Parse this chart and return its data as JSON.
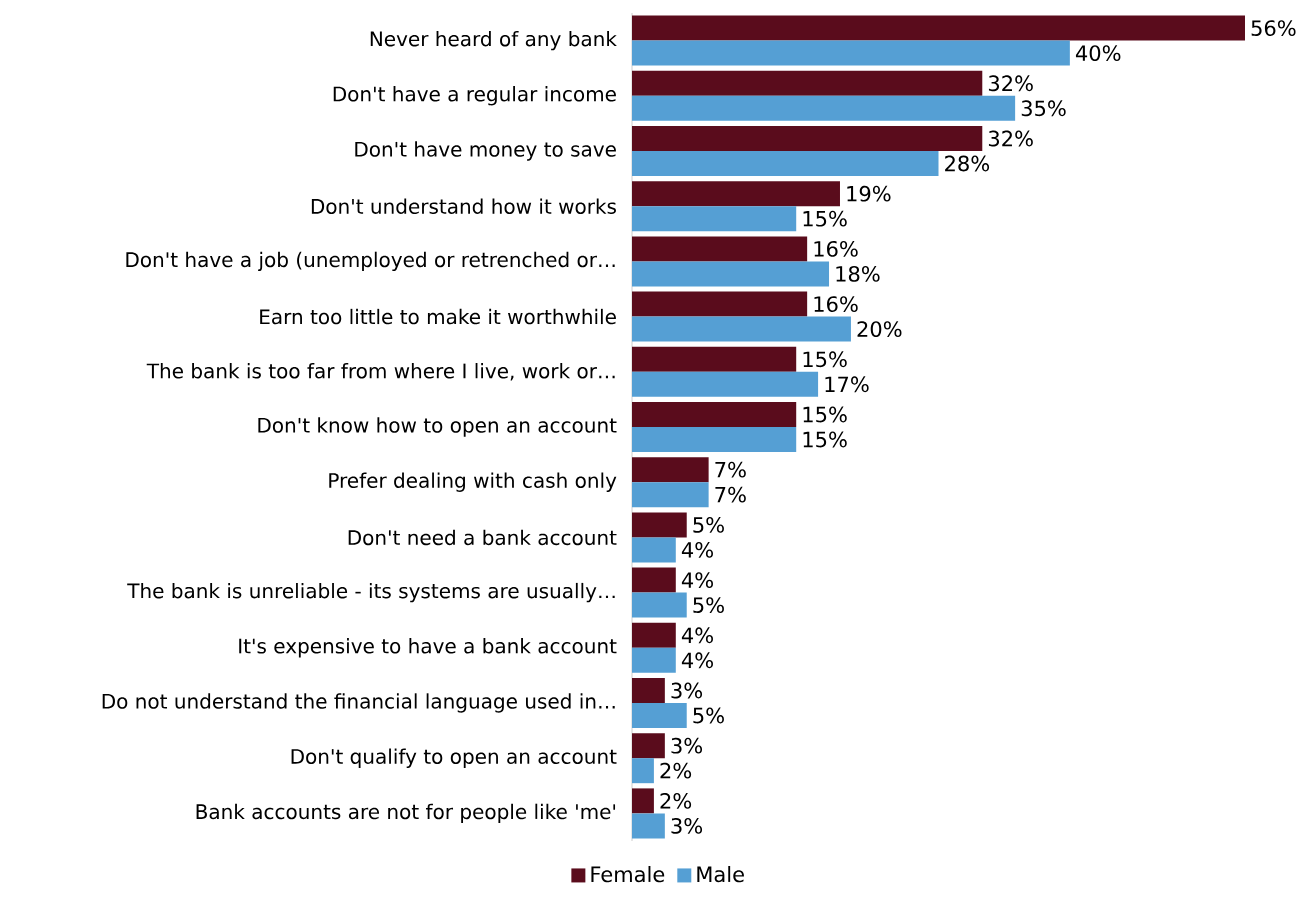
{
  "chart_data": {
    "type": "bar",
    "orientation": "horizontal",
    "legend": "bottom",
    "categories": [
      "Never heard of any bank",
      "Don't have a regular income",
      "Don't have money to save",
      "Don't understand how it works",
      "Don't have a job (unemployed or retrenched or…",
      "Earn too little to make it worthwhile",
      "The bank is too far from where I live, work or…",
      "Don't know how to open an account",
      "Prefer dealing with cash only",
      "Don't need a bank account",
      "The bank is unreliable - its systems are usually…",
      "It's expensive to have a bank account",
      "Do not understand the financial language used in…",
      "Don't qualify to open an account",
      "Bank accounts are not for people like 'me'"
    ],
    "series": [
      {
        "name": "Female",
        "color": "#5a0c1c",
        "values": [
          56,
          32,
          32,
          19,
          16,
          16,
          15,
          15,
          7,
          5,
          4,
          4,
          3,
          3,
          2
        ],
        "value_labels": [
          "56%",
          "32%",
          "32%",
          "19%",
          "16%",
          "16%",
          "15%",
          "15%",
          "7%",
          "5%",
          "4%",
          "4%",
          "3%",
          "3%",
          "2%"
        ]
      },
      {
        "name": "Male",
        "color": "#559fd4",
        "values": [
          40,
          35,
          28,
          15,
          18,
          20,
          17,
          15,
          7,
          4,
          5,
          4,
          5,
          2,
          3
        ],
        "value_labels": [
          "40%",
          "35%",
          "28%",
          "15%",
          "18%",
          "20%",
          "17%",
          "15%",
          "7%",
          "4%",
          "5%",
          "4%",
          "5%",
          "2%",
          "3%"
        ]
      }
    ]
  }
}
